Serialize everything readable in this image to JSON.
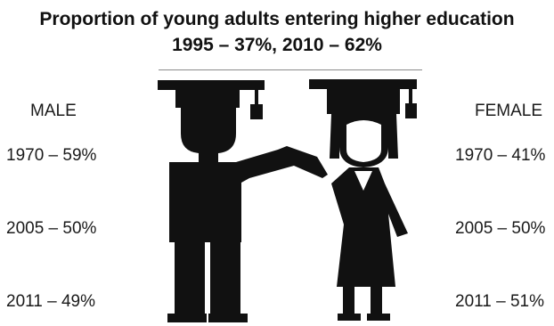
{
  "title": {
    "line1": "Proportion of young adults entering higher education",
    "line2": "1995 – 37%, 2010 – 62%"
  },
  "male": {
    "heading": "MALE",
    "stats": [
      "1970 – 59%",
      "2005 – 50%",
      "2011 – 49%"
    ]
  },
  "female": {
    "heading": "FEMALE",
    "stats": [
      "1970 – 41%",
      "2005 – 50%",
      "2011 – 51%"
    ]
  },
  "illustration": {
    "icon": "graduates-icon",
    "color": "#111111"
  }
}
